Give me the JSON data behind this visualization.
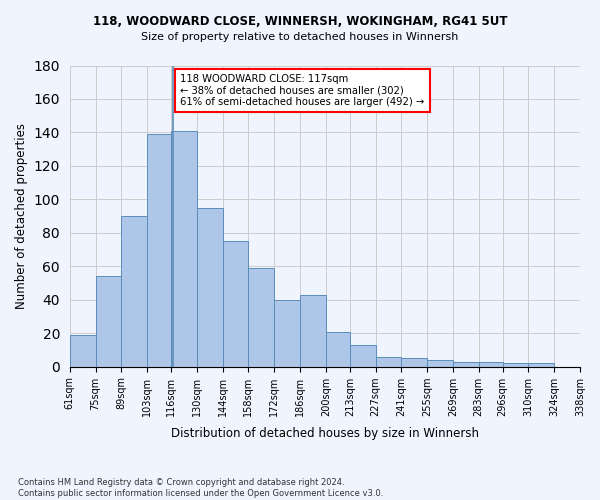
{
  "title1": "118, WOODWARD CLOSE, WINNERSH, WOKINGHAM, RG41 5UT",
  "title2": "Size of property relative to detached houses in Winnersh",
  "xlabel": "Distribution of detached houses by size in Winnersh",
  "ylabel": "Number of detached properties",
  "bar_values": [
    19,
    54,
    90,
    139,
    141,
    95,
    75,
    59,
    40,
    43,
    21,
    13,
    6,
    5,
    4,
    3,
    3,
    2,
    2
  ],
  "bin_left_edges": [
    61,
    75,
    89,
    103,
    116,
    130,
    144,
    158,
    172,
    186,
    200,
    213,
    227,
    241,
    255,
    269,
    283,
    296,
    310
  ],
  "bin_widths": [
    14,
    14,
    14,
    13,
    14,
    14,
    14,
    14,
    14,
    14,
    13,
    14,
    14,
    14,
    14,
    14,
    13,
    14,
    14
  ],
  "bin_labels": [
    "61sqm",
    "75sqm",
    "89sqm",
    "103sqm",
    "116sqm",
    "130sqm",
    "144sqm",
    "158sqm",
    "172sqm",
    "186sqm",
    "200sqm",
    "213sqm",
    "227sqm",
    "241sqm",
    "255sqm",
    "269sqm",
    "283sqm",
    "296sqm",
    "310sqm",
    "324sqm",
    "338sqm"
  ],
  "tick_positions": [
    61,
    75,
    89,
    103,
    116,
    130,
    144,
    158,
    172,
    186,
    200,
    213,
    227,
    241,
    255,
    269,
    283,
    296,
    310,
    324,
    338
  ],
  "bar_color": "#aec6e8",
  "bar_edge_color": "#5b8db8",
  "vline_x": 117,
  "annotation_text": "118 WOODWARD CLOSE: 117sqm\n← 38% of detached houses are smaller (302)\n61% of semi-detached houses are larger (492) →",
  "annotation_box_color": "white",
  "annotation_box_edge_color": "red",
  "ylim": [
    0,
    180
  ],
  "yticks": [
    0,
    20,
    40,
    60,
    80,
    100,
    120,
    140,
    160,
    180
  ],
  "xlim": [
    61,
    338
  ],
  "footnote": "Contains HM Land Registry data © Crown copyright and database right 2024.\nContains public sector information licensed under the Open Government Licence v3.0.",
  "background_color": "#f0f4ff",
  "grid_color": "#cccccc"
}
